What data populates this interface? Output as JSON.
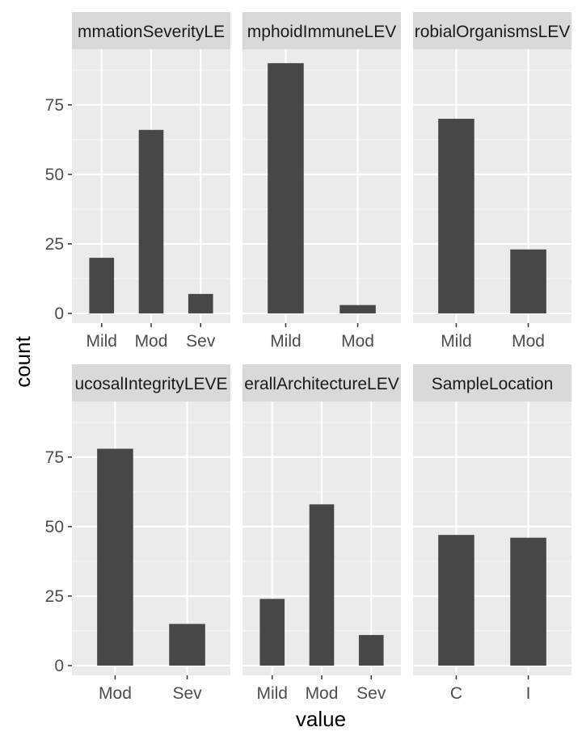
{
  "chart_data": {
    "type": "bar",
    "layout": "facet_wrap",
    "xlabel": "value",
    "ylabel": "count",
    "ylim": [
      0,
      95
    ],
    "yticks": [
      0,
      25,
      50,
      75
    ],
    "grid": true,
    "scales": "free_x",
    "panels": [
      {
        "strip": "mmationSeverityLE",
        "categories": [
          "Mild",
          "Mod",
          "Sev"
        ],
        "values": [
          20,
          66,
          7
        ]
      },
      {
        "strip": "mphoidImmuneLEV",
        "categories": [
          "Mild",
          "Mod"
        ],
        "values": [
          90,
          3
        ]
      },
      {
        "strip": "robialOrganismsLEV",
        "categories": [
          "Mild",
          "Mod"
        ],
        "values": [
          70,
          23
        ]
      },
      {
        "strip": "ucosalIntegrityLEVE",
        "categories": [
          "Mod",
          "Sev"
        ],
        "values": [
          78,
          15
        ]
      },
      {
        "strip": "erallArchitectureLEV",
        "categories": [
          "Mild",
          "Mod",
          "Sev"
        ],
        "values": [
          24,
          58,
          11
        ]
      },
      {
        "strip": "SampleLocation",
        "categories": [
          "C",
          "I"
        ],
        "values": [
          47,
          46
        ]
      }
    ]
  },
  "colors": {
    "panel_background": "#ebebeb",
    "strip_background": "#d9d9d9",
    "bar_fill": "#474747",
    "grid": "#ffffff"
  }
}
